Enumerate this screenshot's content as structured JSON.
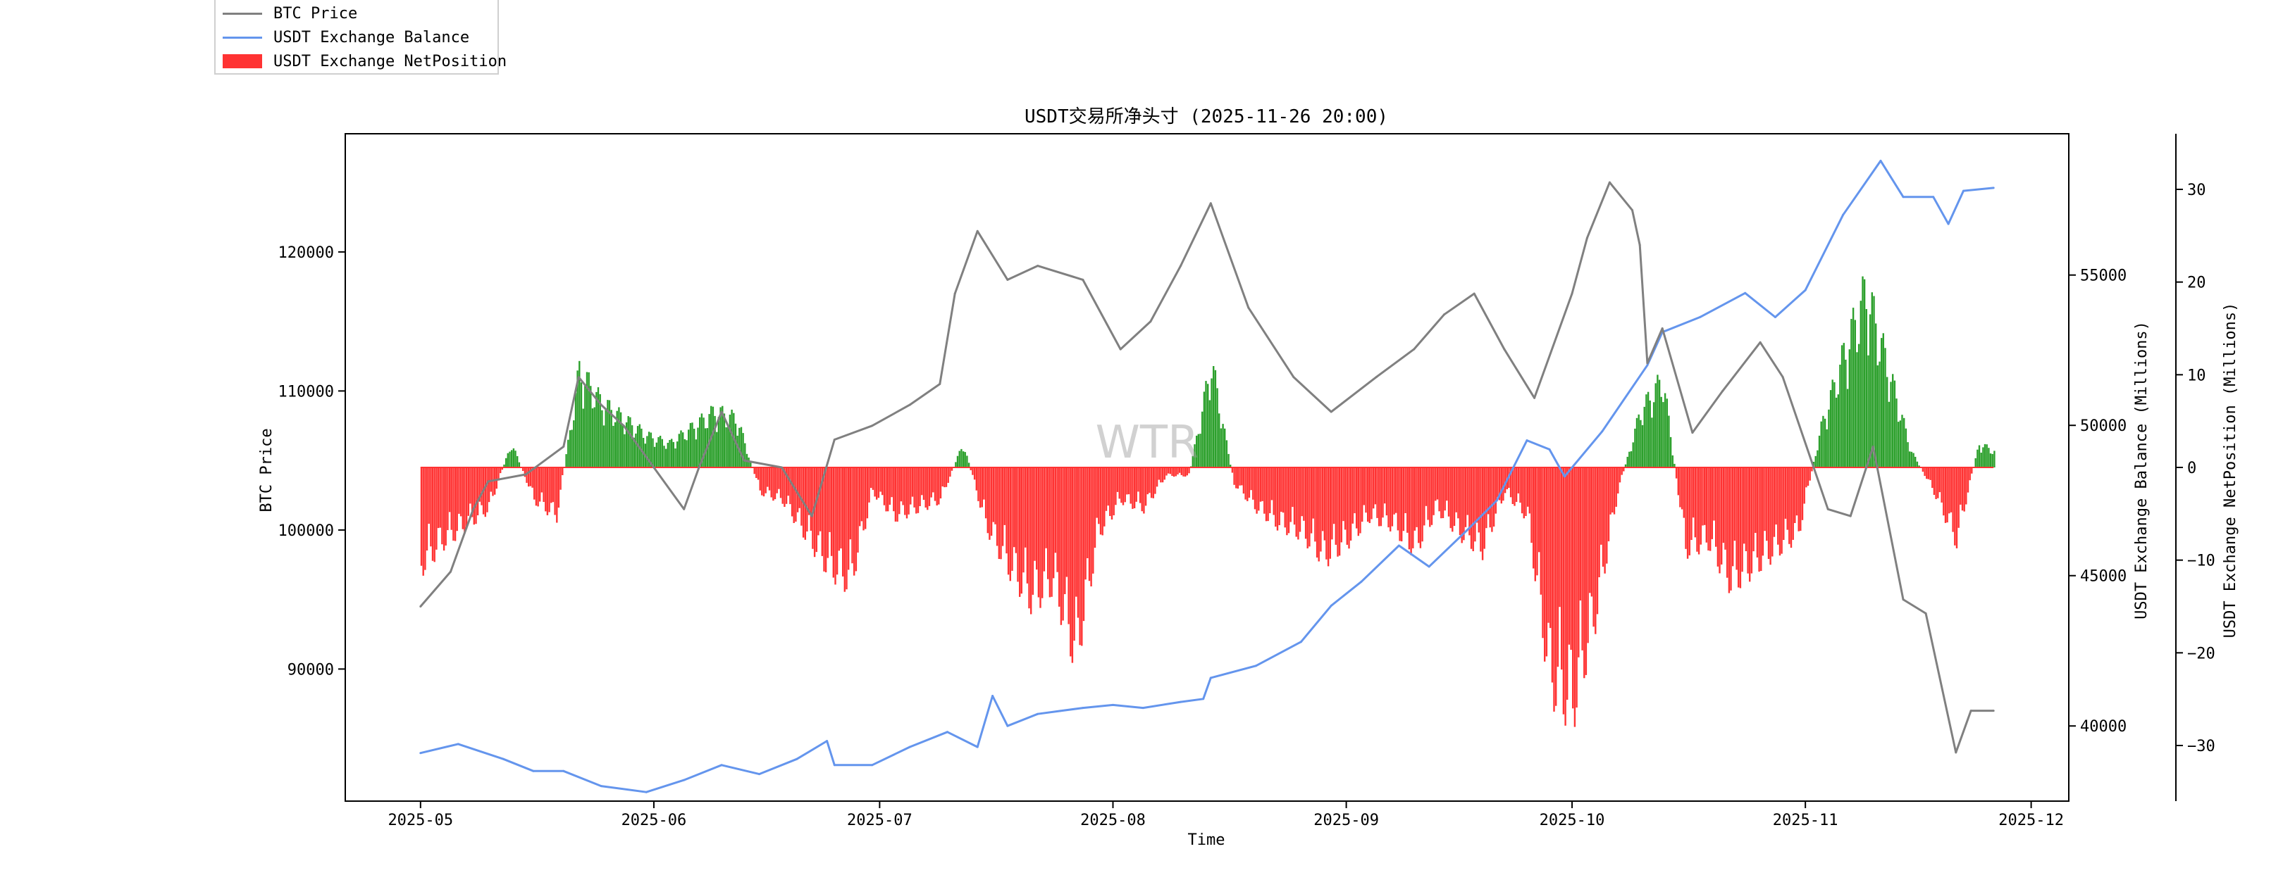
{
  "chart_data": {
    "type": "line",
    "title": "USDT交易所净头寸 (2025-11-26 20:00)",
    "xlabel": "Time",
    "ylabel_left": "BTC Price",
    "ylabel_right1": "USDT Exchange Balance (Millions)",
    "ylabel_right2": "USDT Exchange NetPosition (Millions)",
    "watermark": "WTR",
    "x_range": [
      "2025-04-21",
      "2025-12-06"
    ],
    "x_ticks": [
      "2025-05",
      "2025-06",
      "2025-07",
      "2025-08",
      "2025-09",
      "2025-10",
      "2025-11",
      "2025-12"
    ],
    "y_left": {
      "range": [
        80500,
        128500
      ],
      "ticks": [
        90000,
        100000,
        110000,
        120000
      ]
    },
    "y_right1": {
      "range": [
        37500,
        59700
      ],
      "ticks": [
        40000,
        45000,
        50000,
        55000
      ]
    },
    "y_right2": {
      "range": [
        -36,
        36
      ],
      "ticks": [
        30,
        20,
        10,
        0,
        -10,
        -20,
        -30
      ]
    },
    "legend": {
      "position": "top-left",
      "entries": [
        {
          "label": "BTC Price",
          "color": "#808080",
          "kind": "line"
        },
        {
          "label": "USDT Exchange Balance",
          "color": "#6495ed",
          "kind": "line"
        },
        {
          "label": "USDT Exchange NetPosition",
          "color": "#ff3333",
          "kind": "box"
        }
      ]
    },
    "series": [
      {
        "name": "BTC Price",
        "axis": "left",
        "color": "#808080",
        "x": [
          "2025-05-01",
          "2025-05-05",
          "2025-05-08",
          "2025-05-10",
          "2025-05-15",
          "2025-05-20",
          "2025-05-22",
          "2025-05-25",
          "2025-05-28",
          "2025-06-01",
          "2025-06-05",
          "2025-06-07",
          "2025-06-10",
          "2025-06-13",
          "2025-06-18",
          "2025-06-22",
          "2025-06-25",
          "2025-06-30",
          "2025-07-05",
          "2025-07-09",
          "2025-07-11",
          "2025-07-14",
          "2025-07-18",
          "2025-07-22",
          "2025-07-28",
          "2025-08-02",
          "2025-08-06",
          "2025-08-10",
          "2025-08-14",
          "2025-08-19",
          "2025-08-25",
          "2025-08-30",
          "2025-09-05",
          "2025-09-10",
          "2025-09-14",
          "2025-09-18",
          "2025-09-22",
          "2025-09-26",
          "2025-10-01",
          "2025-10-03",
          "2025-10-06",
          "2025-10-09",
          "2025-10-10",
          "2025-10-11",
          "2025-10-13",
          "2025-10-17",
          "2025-10-21",
          "2025-10-26",
          "2025-10-29",
          "2025-11-04",
          "2025-11-07",
          "2025-11-10",
          "2025-11-14",
          "2025-11-17",
          "2025-11-21",
          "2025-11-23",
          "2025-11-26"
        ],
        "values": [
          94500,
          97000,
          101500,
          103500,
          104000,
          106000,
          111000,
          109000,
          107500,
          104500,
          101500,
          104500,
          108500,
          105000,
          104500,
          101000,
          106500,
          107500,
          109000,
          110500,
          117000,
          121500,
          118000,
          119000,
          118000,
          113000,
          115000,
          119000,
          123500,
          116000,
          111000,
          108500,
          111000,
          113000,
          115500,
          117000,
          113000,
          109500,
          117000,
          121000,
          125000,
          123000,
          120500,
          112000,
          114500,
          107000,
          110000,
          113500,
          111000,
          101500,
          101000,
          106000,
          95000,
          94000,
          84000,
          87000,
          87000
        ]
      },
      {
        "name": "USDT Exchange Balance",
        "axis": "right1",
        "color": "#6495ed",
        "x": [
          "2025-05-01",
          "2025-05-06",
          "2025-05-12",
          "2025-05-16",
          "2025-05-20",
          "2025-05-25",
          "2025-05-31",
          "2025-06-05",
          "2025-06-10",
          "2025-06-15",
          "2025-06-20",
          "2025-06-24",
          "2025-06-25",
          "2025-06-30",
          "2025-07-05",
          "2025-07-10",
          "2025-07-14",
          "2025-07-16",
          "2025-07-18",
          "2025-07-22",
          "2025-07-25",
          "2025-07-28",
          "2025-08-01",
          "2025-08-05",
          "2025-08-10",
          "2025-08-13",
          "2025-08-14",
          "2025-08-20",
          "2025-08-26",
          "2025-08-30",
          "2025-09-03",
          "2025-09-08",
          "2025-09-12",
          "2025-09-17",
          "2025-09-21",
          "2025-09-25",
          "2025-09-28",
          "2025-09-30",
          "2025-10-05",
          "2025-10-11",
          "2025-10-13",
          "2025-10-18",
          "2025-10-24",
          "2025-10-28",
          "2025-11-01",
          "2025-11-06",
          "2025-11-11",
          "2025-11-14",
          "2025-11-18",
          "2025-11-20",
          "2025-11-22",
          "2025-11-26"
        ],
        "values": [
          39100,
          39400,
          38900,
          38500,
          38500,
          38000,
          37800,
          38200,
          38700,
          38400,
          38900,
          39500,
          38700,
          38700,
          39300,
          39800,
          39300,
          41000,
          40000,
          40400,
          40500,
          40600,
          40700,
          40600,
          40800,
          40900,
          41600,
          42000,
          42800,
          44000,
          44800,
          46000,
          45300,
          46500,
          47500,
          49500,
          49200,
          48300,
          49800,
          52000,
          53100,
          53600,
          54400,
          53600,
          54500,
          57000,
          58800,
          57600,
          57600,
          56700,
          57800,
          57900
        ]
      },
      {
        "name": "USDT Exchange NetPosition",
        "axis": "right2",
        "kind": "bar",
        "positive_color": "#2ca02c",
        "negative_color": "#ff3333",
        "x": [
          "2025-05-01",
          "2025-05-04",
          "2025-05-07",
          "2025-05-10",
          "2025-05-13",
          "2025-05-16",
          "2025-05-19",
          "2025-05-22",
          "2025-05-25",
          "2025-05-28",
          "2025-05-31",
          "2025-06-03",
          "2025-06-06",
          "2025-06-09",
          "2025-06-12",
          "2025-06-15",
          "2025-06-18",
          "2025-06-21",
          "2025-06-24",
          "2025-06-27",
          "2025-06-30",
          "2025-07-03",
          "2025-07-06",
          "2025-07-09",
          "2025-07-12",
          "2025-07-15",
          "2025-07-18",
          "2025-07-21",
          "2025-07-24",
          "2025-07-27",
          "2025-07-30",
          "2025-08-02",
          "2025-08-05",
          "2025-08-08",
          "2025-08-11",
          "2025-08-14",
          "2025-08-17",
          "2025-08-20",
          "2025-08-23",
          "2025-08-26",
          "2025-08-29",
          "2025-09-01",
          "2025-09-04",
          "2025-09-07",
          "2025-09-10",
          "2025-09-13",
          "2025-09-16",
          "2025-09-19",
          "2025-09-22",
          "2025-09-25",
          "2025-09-28",
          "2025-10-01",
          "2025-10-04",
          "2025-10-07",
          "2025-10-10",
          "2025-10-13",
          "2025-10-16",
          "2025-10-19",
          "2025-10-22",
          "2025-10-25",
          "2025-10-28",
          "2025-10-31",
          "2025-11-03",
          "2025-11-06",
          "2025-11-09",
          "2025-11-12",
          "2025-11-15",
          "2025-11-18",
          "2025-11-21",
          "2025-11-24",
          "2025-11-26"
        ],
        "values": [
          -12,
          -9,
          -7,
          -5,
          3,
          -4,
          -6,
          12,
          8,
          6,
          4,
          3,
          5,
          7,
          6,
          -3,
          -4,
          -8,
          -12,
          -14,
          -3,
          -6,
          -5,
          -4,
          3,
          -7,
          -12,
          -16,
          -14,
          -23,
          -8,
          -4,
          -5,
          -1,
          -1,
          13,
          -2,
          -5,
          -7,
          -8,
          -11,
          -9,
          -6,
          -7,
          -10,
          -5,
          -8,
          -10,
          -3,
          -6,
          -26,
          -29,
          -18,
          -3,
          7,
          11,
          -10,
          -9,
          -14,
          -12,
          -10,
          -8,
          5,
          14,
          22,
          12,
          2,
          -3,
          -9,
          3,
          2
        ]
      }
    ]
  }
}
